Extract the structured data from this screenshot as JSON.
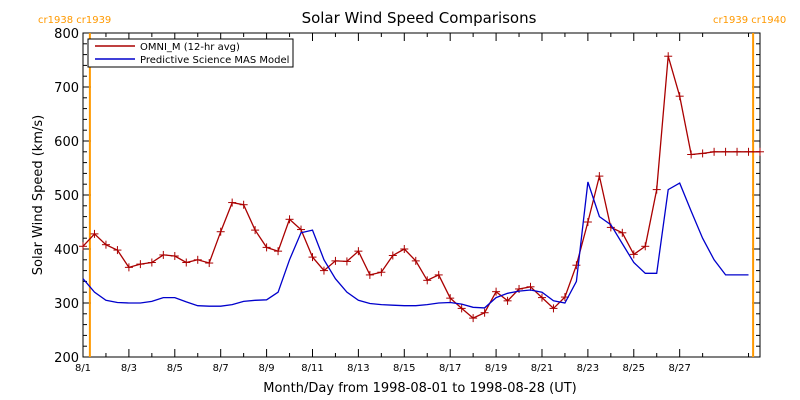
{
  "chart_data": {
    "type": "line",
    "title": "Solar Wind Speed Comparisons",
    "xlabel": "Month/Day from 1998-08-01 to 1998-08-28 (UT)",
    "ylabel": "Solar Wind Speed (km/s)",
    "xlim": [
      0,
      29.5
    ],
    "ylim": [
      200,
      800
    ],
    "x_ticks": [
      {
        "day": 0,
        "label": "8/1"
      },
      {
        "day": 2,
        "label": "8/3"
      },
      {
        "day": 4,
        "label": "8/5"
      },
      {
        "day": 6,
        "label": "8/7"
      },
      {
        "day": 8,
        "label": "8/9"
      },
      {
        "day": 10,
        "label": "8/11"
      },
      {
        "day": 12,
        "label": "8/13"
      },
      {
        "day": 14,
        "label": "8/15"
      },
      {
        "day": 16,
        "label": "8/17"
      },
      {
        "day": 18,
        "label": "8/19"
      },
      {
        "day": 20,
        "label": "8/21"
      },
      {
        "day": 22,
        "label": "8/23"
      },
      {
        "day": 24,
        "label": "8/25"
      },
      {
        "day": 26,
        "label": "8/27"
      }
    ],
    "y_ticks": [
      200,
      300,
      400,
      500,
      600,
      700,
      800
    ],
    "carrington_markers": [
      {
        "day": 0.3,
        "labels": [
          "cr1938",
          "cr1939"
        ]
      },
      {
        "day": 29.2,
        "labels": [
          "cr1939",
          "cr1940"
        ]
      }
    ],
    "legend_position": "top-left",
    "series": [
      {
        "name": "OMNI_M (12-hr avg)",
        "color": "#aa0000",
        "marker": "plus",
        "x": [
          0.0,
          0.5,
          1.0,
          1.5,
          2.0,
          2.5,
          3.0,
          3.5,
          4.0,
          4.5,
          5.0,
          5.5,
          6.0,
          6.5,
          7.0,
          7.5,
          8.0,
          8.5,
          9.0,
          9.5,
          10.0,
          10.5,
          11.0,
          11.5,
          12.0,
          12.5,
          13.0,
          13.5,
          14.0,
          14.5,
          15.0,
          15.5,
          16.0,
          16.5,
          17.0,
          17.5,
          18.0,
          18.5,
          19.0,
          19.5,
          20.0,
          20.5,
          21.0,
          21.5,
          22.0,
          22.5,
          23.0,
          23.5,
          24.0,
          24.5,
          25.0,
          25.5,
          26.0,
          26.5,
          27.0,
          27.5,
          28.0,
          28.5,
          29.0,
          29.5
        ],
        "values": [
          405,
          428,
          408,
          398,
          366,
          372,
          375,
          389,
          387,
          375,
          380,
          374,
          432,
          486,
          482,
          435,
          403,
          396,
          455,
          436,
          385,
          360,
          378,
          377,
          396,
          352,
          357,
          388,
          400,
          378,
          342,
          352,
          309,
          290,
          272,
          282,
          321,
          304,
          326,
          330,
          310,
          290,
          311,
          370,
          450,
          535,
          440,
          430,
          390,
          405,
          510,
          757,
          683,
          575,
          577,
          580,
          580,
          580,
          580,
          580
        ]
      },
      {
        "name": "Predictive Science MAS Model",
        "color": "#0000cc",
        "marker": "none",
        "x": [
          0.0,
          0.5,
          1.0,
          1.5,
          2.0,
          2.5,
          3.0,
          3.5,
          4.0,
          4.5,
          5.0,
          5.5,
          6.0,
          6.5,
          7.0,
          7.5,
          8.0,
          8.5,
          9.0,
          9.5,
          10.0,
          10.5,
          11.0,
          11.5,
          12.0,
          12.5,
          13.0,
          13.5,
          14.0,
          14.5,
          15.0,
          15.5,
          16.0,
          16.5,
          17.0,
          17.5,
          18.0,
          18.5,
          19.0,
          19.5,
          20.0,
          20.5,
          21.0,
          21.5,
          22.0,
          22.5,
          23.0,
          23.5,
          24.0,
          24.5,
          25.0,
          25.5,
          26.0,
          26.5,
          27.0,
          27.5,
          28.0,
          28.5,
          29.0
        ],
        "values": [
          345,
          320,
          305,
          301,
          300,
          300,
          303,
          310,
          310,
          302,
          295,
          294,
          294,
          297,
          303,
          305,
          306,
          320,
          380,
          430,
          435,
          380,
          345,
          320,
          305,
          299,
          297,
          296,
          295,
          295,
          297,
          300,
          301,
          298,
          292,
          291,
          310,
          318,
          322,
          324,
          320,
          304,
          300,
          340,
          524,
          460,
          445,
          410,
          375,
          355,
          355,
          510,
          522,
          470,
          420,
          380,
          352,
          352,
          352
        ]
      }
    ]
  }
}
